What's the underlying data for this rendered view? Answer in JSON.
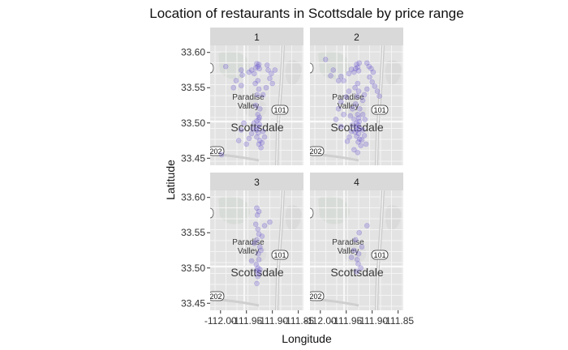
{
  "chart_data": {
    "type": "scatter",
    "title": "Location of restaurants in Scottsdale by price range",
    "xlabel": "Longitude",
    "ylabel": "Latitude",
    "xlim": [
      -112.02,
      -111.84
    ],
    "ylim": [
      33.44,
      33.61
    ],
    "x_ticks": [
      "-112.00",
      "-111.95",
      "-111.90",
      "-111.85"
    ],
    "y_ticks": [
      "33.60",
      "33.55",
      "33.50",
      "33.45"
    ],
    "x_tick_values": [
      -112.0,
      -111.95,
      -111.9,
      -111.85
    ],
    "y_tick_values": [
      33.6,
      33.55,
      33.5,
      33.45
    ],
    "grid": false,
    "point_color": "#6a5acd",
    "map_labels": {
      "place_1": "Paradise",
      "place_2": "Valley",
      "city": "Scottsdale",
      "highway_1": "101",
      "highway_2": "202"
    },
    "facets": [
      {
        "label": "1",
        "points": [
          [
            -111.93,
            33.584
          ],
          [
            -111.928,
            33.58
          ],
          [
            -111.926,
            33.583
          ],
          [
            -111.925,
            33.577
          ],
          [
            -111.932,
            33.578
          ],
          [
            -111.935,
            33.57
          ],
          [
            -111.94,
            33.575
          ],
          [
            -111.945,
            33.572
          ],
          [
            -111.96,
            33.575
          ],
          [
            -111.958,
            33.568
          ],
          [
            -111.928,
            33.56
          ],
          [
            -111.933,
            33.556
          ],
          [
            -111.926,
            33.548
          ],
          [
            -111.929,
            33.54
          ],
          [
            -111.932,
            33.525
          ],
          [
            -111.924,
            33.52
          ],
          [
            -111.928,
            33.512
          ],
          [
            -111.926,
            33.505
          ],
          [
            -111.925,
            33.498
          ],
          [
            -111.928,
            33.494
          ],
          [
            -111.931,
            33.49
          ],
          [
            -111.927,
            33.486
          ],
          [
            -111.93,
            33.48
          ],
          [
            -111.924,
            33.475
          ],
          [
            -111.926,
            33.47
          ],
          [
            -111.922,
            33.465
          ],
          [
            -111.935,
            33.5
          ],
          [
            -111.938,
            33.492
          ],
          [
            -111.94,
            33.485
          ],
          [
            -111.945,
            33.478
          ],
          [
            -111.95,
            33.47
          ],
          [
            -111.918,
            33.488
          ],
          [
            -111.915,
            33.48
          ],
          [
            -111.92,
            33.472
          ],
          [
            -111.99,
            33.58
          ],
          [
            -111.91,
            33.582
          ],
          [
            -111.908,
            33.575
          ],
          [
            -111.902,
            33.57
          ],
          [
            -111.905,
            33.563
          ],
          [
            -111.9,
            33.556
          ],
          [
            -111.895,
            33.575
          ],
          [
            -111.912,
            33.55
          ],
          [
            -111.918,
            33.54
          ],
          [
            -111.96,
            33.553
          ],
          [
            -111.955,
            33.5
          ],
          [
            -111.96,
            33.49
          ],
          [
            -111.965,
            33.475
          ],
          [
            -111.93,
            33.503
          ],
          [
            -111.925,
            33.508
          ],
          [
            -111.97,
            33.56
          ],
          [
            -111.975,
            33.55
          ],
          [
            -111.998,
            33.455
          ]
        ]
      },
      {
        "label": "2",
        "points": [
          [
            -111.93,
            33.583
          ],
          [
            -111.928,
            33.579
          ],
          [
            -111.925,
            33.585
          ],
          [
            -111.932,
            33.577
          ],
          [
            -111.926,
            33.574
          ],
          [
            -111.935,
            33.572
          ],
          [
            -111.94,
            33.576
          ],
          [
            -111.945,
            33.57
          ],
          [
            -111.96,
            33.566
          ],
          [
            -111.965,
            33.56
          ],
          [
            -111.955,
            33.56
          ],
          [
            -111.928,
            33.556
          ],
          [
            -111.933,
            33.55
          ],
          [
            -111.926,
            33.545
          ],
          [
            -111.929,
            33.538
          ],
          [
            -111.932,
            33.527
          ],
          [
            -111.924,
            33.52
          ],
          [
            -111.928,
            33.512
          ],
          [
            -111.926,
            33.507
          ],
          [
            -111.925,
            33.502
          ],
          [
            -111.93,
            33.5
          ],
          [
            -111.927,
            33.497
          ],
          [
            -111.931,
            33.494
          ],
          [
            -111.924,
            33.492
          ],
          [
            -111.929,
            33.49
          ],
          [
            -111.933,
            33.487
          ],
          [
            -111.926,
            33.485
          ],
          [
            -111.93,
            33.481
          ],
          [
            -111.924,
            33.477
          ],
          [
            -111.927,
            33.473
          ],
          [
            -111.922,
            33.468
          ],
          [
            -111.935,
            33.505
          ],
          [
            -111.938,
            33.497
          ],
          [
            -111.94,
            33.488
          ],
          [
            -111.944,
            33.48
          ],
          [
            -111.948,
            33.474
          ],
          [
            -111.918,
            33.49
          ],
          [
            -111.915,
            33.482
          ],
          [
            -111.92,
            33.476
          ],
          [
            -111.912,
            33.47
          ],
          [
            -111.91,
            33.585
          ],
          [
            -111.906,
            33.58
          ],
          [
            -111.902,
            33.577
          ],
          [
            -111.898,
            33.572
          ],
          [
            -111.905,
            33.565
          ],
          [
            -111.9,
            33.558
          ],
          [
            -111.895,
            33.552
          ],
          [
            -111.91,
            33.548
          ],
          [
            -111.915,
            33.54
          ],
          [
            -111.918,
            33.532
          ],
          [
            -111.96,
            33.53
          ],
          [
            -111.965,
            33.52
          ],
          [
            -111.955,
            33.512
          ],
          [
            -111.97,
            33.505
          ],
          [
            -111.96,
            33.495
          ],
          [
            -111.945,
            33.545
          ],
          [
            -111.95,
            33.537
          ],
          [
            -111.975,
            33.575
          ],
          [
            -111.98,
            33.567
          ],
          [
            -111.89,
            33.545
          ],
          [
            -111.886,
            33.538
          ],
          [
            -111.99,
            33.59
          ],
          [
            -111.935,
            33.462
          ],
          [
            -111.928,
            33.458
          ],
          [
            -111.918,
            33.512
          ],
          [
            -111.914,
            33.505
          ],
          [
            -111.938,
            33.52
          ],
          [
            -111.942,
            33.51
          ]
        ]
      },
      {
        "label": "3",
        "points": [
          [
            -111.93,
            33.585
          ],
          [
            -111.926,
            33.58
          ],
          [
            -111.929,
            33.575
          ],
          [
            -111.932,
            33.562
          ],
          [
            -111.928,
            33.555
          ],
          [
            -111.926,
            33.548
          ],
          [
            -111.93,
            33.54
          ],
          [
            -111.924,
            33.53
          ],
          [
            -111.927,
            33.52
          ],
          [
            -111.926,
            33.512
          ],
          [
            -111.931,
            33.505
          ],
          [
            -111.928,
            33.5
          ],
          [
            -111.924,
            33.498
          ],
          [
            -111.93,
            33.496
          ],
          [
            -111.926,
            33.493
          ],
          [
            -111.928,
            33.488
          ],
          [
            -111.93,
            33.478
          ],
          [
            -111.922,
            33.525
          ],
          [
            -111.935,
            33.535
          ],
          [
            -111.92,
            33.545
          ],
          [
            -111.915,
            33.56
          ],
          [
            -111.905,
            33.565
          ],
          [
            -111.94,
            33.51
          ]
        ]
      },
      {
        "label": "4",
        "points": [
          [
            -111.926,
            33.52
          ],
          [
            -111.929,
            33.512
          ],
          [
            -111.927,
            33.506
          ],
          [
            -111.935,
            33.525
          ],
          [
            -111.92,
            33.53
          ],
          [
            -111.932,
            33.54
          ],
          [
            -111.922,
            33.5
          ],
          [
            -111.93,
            33.495
          ],
          [
            -111.91,
            33.56
          ],
          [
            -111.94,
            33.515
          ],
          [
            -111.925,
            33.55
          ]
        ]
      }
    ]
  }
}
